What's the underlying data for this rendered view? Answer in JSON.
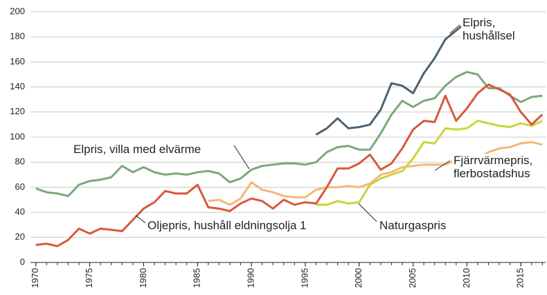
{
  "chart_data": {
    "type": "line",
    "x": [
      1970,
      1971,
      1972,
      1973,
      1974,
      1975,
      1976,
      1977,
      1978,
      1979,
      1980,
      1981,
      1982,
      1983,
      1984,
      1985,
      1986,
      1987,
      1988,
      1989,
      1990,
      1991,
      1992,
      1993,
      1994,
      1995,
      1996,
      1997,
      1998,
      1999,
      2000,
      2001,
      2002,
      2003,
      2004,
      2005,
      2006,
      2007,
      2008,
      2009,
      2010,
      2011,
      2012,
      2013,
      2014,
      2015,
      2016,
      2017
    ],
    "series": [
      {
        "name": "Elpris, hushållsel",
        "color": "#4b6272",
        "values": [
          null,
          null,
          null,
          null,
          null,
          null,
          null,
          null,
          null,
          null,
          null,
          null,
          null,
          null,
          null,
          null,
          null,
          null,
          null,
          null,
          null,
          null,
          null,
          null,
          null,
          null,
          102,
          107,
          115,
          107,
          108,
          110,
          122,
          143,
          141,
          135,
          151,
          163,
          178,
          185,
          192,
          193,
          183,
          184,
          179,
          179,
          186,
          190
        ]
      },
      {
        "name": "Elpris, villa med elvärme",
        "color": "#7ca77c",
        "values": [
          59,
          56,
          55,
          53,
          62,
          65,
          66,
          68,
          77,
          72,
          76,
          72,
          70,
          71,
          70,
          72,
          73,
          71,
          64,
          67,
          74,
          77,
          78,
          79,
          79,
          78,
          80,
          88,
          92,
          93,
          90,
          90,
          103,
          118,
          129,
          124,
          129,
          131,
          141,
          148,
          152,
          150,
          139,
          139,
          133,
          128,
          132,
          133
        ]
      },
      {
        "name": "Oljepris, hushåll eldningsolja 1",
        "color": "#d9573a",
        "values": [
          14,
          15,
          13,
          18,
          27,
          23,
          27,
          26,
          25,
          34,
          43,
          48,
          57,
          55,
          55,
          62,
          44,
          43,
          41,
          47,
          51,
          49,
          43,
          50,
          46,
          48,
          47,
          60,
          75,
          75,
          79,
          86,
          74,
          79,
          91,
          106,
          113,
          112,
          133,
          113,
          123,
          135,
          142,
          138,
          134,
          120,
          110,
          118
        ]
      },
      {
        "name": "Fjärrvärmepris, flerbostadshus",
        "color": "#f3b874",
        "values": [
          null,
          null,
          null,
          null,
          null,
          null,
          null,
          null,
          null,
          null,
          null,
          null,
          null,
          null,
          null,
          null,
          49,
          50,
          46,
          51,
          64,
          58,
          56,
          53,
          52,
          52,
          58,
          60,
          60,
          61,
          60,
          63,
          70,
          72,
          76,
          77,
          78,
          78,
          78,
          82,
          83,
          83,
          88,
          91,
          92,
          95,
          96,
          94
        ]
      },
      {
        "name": "Naturgaspris",
        "color": "#cad43e",
        "values": [
          null,
          null,
          null,
          null,
          null,
          null,
          null,
          null,
          null,
          null,
          null,
          null,
          null,
          null,
          null,
          null,
          null,
          null,
          null,
          null,
          null,
          null,
          null,
          null,
          null,
          null,
          46,
          46,
          49,
          47,
          48,
          62,
          67,
          70,
          73,
          83,
          96,
          95,
          107,
          106,
          107,
          113,
          111,
          109,
          108,
          111,
          109,
          113
        ]
      }
    ],
    "xlim": [
      1969.5,
      2017.3
    ],
    "xticks": [
      1970,
      1975,
      1980,
      1985,
      1990,
      1995,
      2000,
      2005,
      2010,
      2015
    ],
    "ylim": [
      0,
      200
    ],
    "yticks": [
      0,
      20,
      40,
      60,
      80,
      100,
      120,
      140,
      160,
      180,
      200
    ],
    "grid": true
  }
}
